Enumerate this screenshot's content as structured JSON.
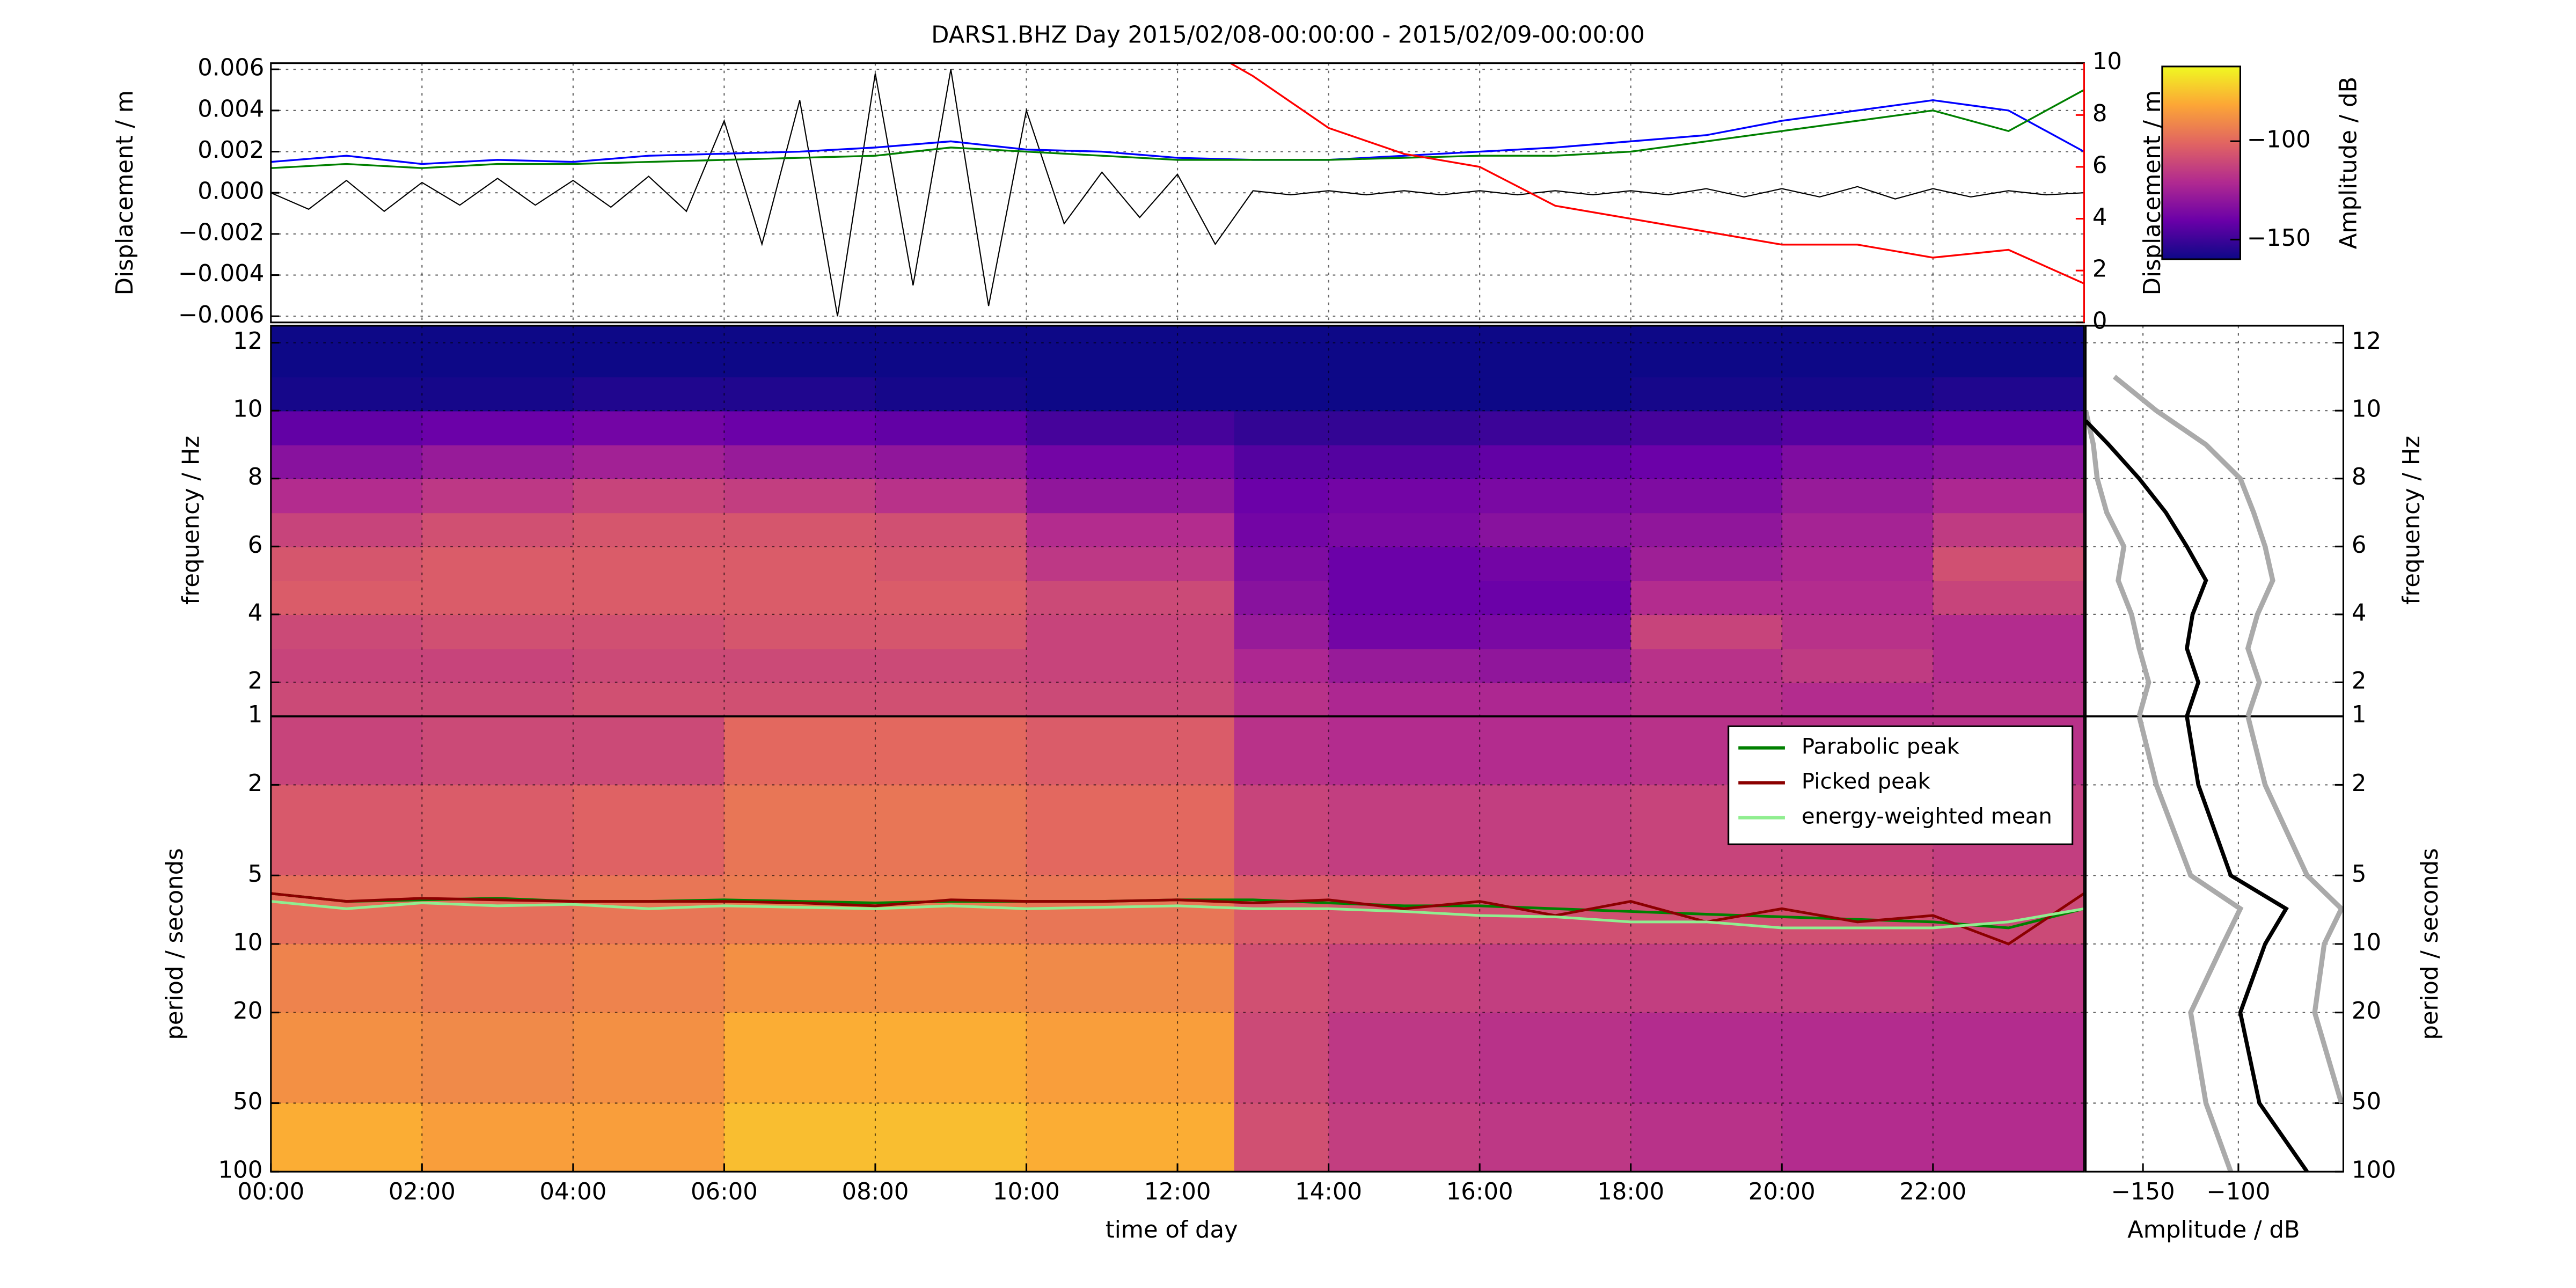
{
  "chart_data": [
    {
      "type": "line",
      "title": "DARS1.BHZ Day 2015/02/08-00:00:00 - 2015/02/09-00:00:00",
      "ylabel": "Displacement / m",
      "y2label": "Displacement / m",
      "y2color": "#ff0000",
      "xlim": [
        0,
        24
      ],
      "ylim": [
        -0.0063,
        0.0063
      ],
      "yticks": [
        {
          "value": -0.006,
          "label": "−0.006"
        },
        {
          "value": -0.004,
          "label": "−0.004"
        },
        {
          "value": -0.002,
          "label": "−0.002"
        },
        {
          "value": 0,
          "label": "0.000"
        },
        0.002,
        0.004,
        0.006
      ],
      "y2lim": [
        0,
        10
      ],
      "y2ticks": [
        0,
        2,
        4,
        6,
        8,
        10
      ],
      "grid": true,
      "series": [
        {
          "color": "#000000",
          "x": [
            0,
            0.5,
            1,
            1.5,
            2,
            2.5,
            3,
            3.5,
            4,
            4.5,
            5,
            5.5,
            6,
            6.5,
            7,
            7.5,
            8,
            8.5,
            9,
            9.5,
            10,
            10.5,
            11,
            11.5,
            12,
            12.5,
            13,
            13.5,
            14,
            14.5,
            15,
            15.5,
            16,
            16.5,
            17,
            17.5,
            18,
            18.5,
            19,
            19.5,
            20,
            20.5,
            21,
            21.5,
            22,
            22.5,
            23,
            23.5,
            24
          ],
          "values": [
            0,
            -0.0008,
            0.0006,
            -0.0009,
            0.0005,
            -0.0006,
            0.0007,
            -0.0006,
            0.0006,
            -0.0007,
            0.0008,
            -0.0009,
            0.0035,
            -0.0025,
            0.0045,
            -0.006,
            0.0058,
            -0.0045,
            0.006,
            -0.0055,
            0.004,
            -0.0015,
            0.001,
            -0.0012,
            0.0009,
            -0.0025,
            0.0001,
            -0.0001,
            0.0001,
            -0.0001,
            0.0001,
            -0.0001,
            0.0001,
            -0.0001,
            0.0001,
            -0.0001,
            0.0001,
            -0.0001,
            0.0002,
            -0.0002,
            0.0002,
            -0.0002,
            0.0003,
            -0.0003,
            0.0002,
            -0.0002,
            0.0001,
            -0.0001,
            0
          ]
        },
        {
          "color": "#0000ff",
          "x": [
            0,
            1,
            2,
            3,
            4,
            5,
            6,
            7,
            8,
            9,
            10,
            11,
            12,
            13,
            14,
            15,
            16,
            17,
            18,
            19,
            20,
            21,
            22,
            23,
            24
          ],
          "values": [
            0.0015,
            0.0018,
            0.0014,
            0.0016,
            0.0015,
            0.0018,
            0.0019,
            0.002,
            0.0022,
            0.0025,
            0.0021,
            0.002,
            0.0017,
            0.0016,
            0.0016,
            0.0018,
            0.002,
            0.0022,
            0.0025,
            0.0028,
            0.0035,
            0.004,
            0.0045,
            0.004,
            0.002
          ]
        },
        {
          "color": "#008000",
          "x": [
            0,
            1,
            2,
            3,
            4,
            5,
            6,
            7,
            8,
            9,
            10,
            11,
            12,
            13,
            14,
            15,
            16,
            17,
            18,
            19,
            20,
            21,
            22,
            23,
            24
          ],
          "values": [
            0.0012,
            0.0014,
            0.0012,
            0.0014,
            0.0014,
            0.0015,
            0.0016,
            0.0017,
            0.0018,
            0.0022,
            0.002,
            0.0018,
            0.0016,
            0.0016,
            0.0016,
            0.0017,
            0.0018,
            0.0018,
            0.002,
            0.0025,
            0.003,
            0.0035,
            0.004,
            0.003,
            0.005
          ]
        },
        {
          "color": "#ff0000",
          "axis": "y2",
          "x": [
            12.7,
            13,
            14,
            15,
            16,
            17,
            18,
            19,
            20,
            21,
            22,
            23,
            24
          ],
          "values": [
            10,
            9.5,
            7.5,
            6.5,
            6,
            4.5,
            4,
            3.5,
            3,
            3,
            2.5,
            2.8,
            1.5
          ]
        }
      ]
    },
    {
      "type": "spectrogram",
      "xlabel": "time of day",
      "xlim": [
        0,
        24
      ],
      "xticks": [
        {
          "value": 0,
          "label": "00:00"
        },
        {
          "value": 2,
          "label": "02:00"
        },
        {
          "value": 4,
          "label": "04:00"
        },
        {
          "value": 6,
          "label": "06:00"
        },
        {
          "value": 8,
          "label": "08:00"
        },
        {
          "value": 10,
          "label": "10:00"
        },
        {
          "value": 12,
          "label": "12:00"
        },
        {
          "value": 14,
          "label": "14:00"
        },
        {
          "value": 16,
          "label": "16:00"
        },
        {
          "value": 18,
          "label": "18:00"
        },
        {
          "value": 20,
          "label": "20:00"
        },
        {
          "value": 22,
          "label": "22:00"
        }
      ],
      "grid": true,
      "colormap": [
        "#0d0887",
        "#6a00a8",
        "#b12a90",
        "#e16462",
        "#fca636",
        "#f0f921"
      ],
      "clim": [
        -160,
        -62
      ],
      "colorbar_label": "Amplitude / dB",
      "colorbar_ticks": [
        {
          "value": -150,
          "label": "−150"
        },
        {
          "value": -100,
          "label": "−100"
        }
      ],
      "columns": [
        0,
        2,
        4,
        6,
        8,
        10,
        12.75,
        14,
        16,
        18,
        20,
        22,
        24
      ],
      "frequency": {
        "ylabel": "frequency / Hz",
        "ylim": [
          1,
          12.5
        ],
        "yticks": [
          2,
          4,
          6,
          8,
          10,
          12
        ],
        "rows": [
          1,
          2,
          3,
          4,
          5,
          6,
          7,
          8,
          9,
          10,
          11,
          12.5
        ],
        "values": [
          [
            -110,
            -110,
            -108,
            -108,
            -108,
            -110,
            -118,
            -122,
            -122,
            -118,
            -120,
            -118
          ],
          [
            -112,
            -112,
            -110,
            -110,
            -110,
            -112,
            -122,
            -128,
            -130,
            -118,
            -115,
            -120
          ],
          [
            -110,
            -108,
            -108,
            -106,
            -106,
            -112,
            -128,
            -138,
            -136,
            -112,
            -118,
            -120
          ],
          [
            -104,
            -104,
            -104,
            -104,
            -104,
            -110,
            -132,
            -140,
            -140,
            -120,
            -120,
            -112
          ],
          [
            -106,
            -104,
            -104,
            -104,
            -106,
            -116,
            -135,
            -140,
            -138,
            -126,
            -122,
            -108
          ],
          [
            -112,
            -108,
            -106,
            -106,
            -108,
            -120,
            -138,
            -136,
            -132,
            -130,
            -124,
            -115
          ],
          [
            -120,
            -116,
            -112,
            -114,
            -118,
            -130,
            -140,
            -138,
            -136,
            -135,
            -128,
            -122
          ],
          [
            -132,
            -128,
            -125,
            -128,
            -130,
            -138,
            -145,
            -145,
            -142,
            -140,
            -135,
            -132
          ],
          [
            -142,
            -140,
            -138,
            -140,
            -142,
            -148,
            -152,
            -152,
            -150,
            -148,
            -145,
            -142
          ],
          [
            -158,
            -158,
            -156,
            -156,
            -158,
            -160,
            -160,
            -160,
            -160,
            -158,
            -158,
            -156
          ],
          [
            -160,
            -160,
            -160,
            -160,
            -160,
            -160,
            -160,
            -160,
            -160,
            -160,
            -160,
            -160
          ]
        ]
      },
      "period": {
        "ylabel": "period / seconds",
        "ylim": [
          1,
          100
        ],
        "log": true,
        "yticks": [
          1,
          2,
          5,
          10,
          20,
          50,
          100
        ],
        "rows": [
          1,
          2,
          5,
          10,
          20,
          50,
          100
        ],
        "values": [
          [
            -112,
            -110,
            -110,
            -100,
            -100,
            -104,
            -118,
            -120,
            -120,
            -118,
            -118,
            -118
          ],
          [
            -105,
            -104,
            -102,
            -96,
            -96,
            -100,
            -112,
            -114,
            -114,
            -112,
            -112,
            -114
          ],
          [
            -98,
            -98,
            -96,
            -94,
            -94,
            -96,
            -104,
            -106,
            -108,
            -108,
            -108,
            -110
          ],
          [
            -92,
            -94,
            -92,
            -88,
            -88,
            -90,
            -108,
            -112,
            -114,
            -114,
            -114,
            -116
          ],
          [
            -88,
            -90,
            -88,
            -80,
            -80,
            -84,
            -110,
            -116,
            -118,
            -120,
            -120,
            -120
          ],
          [
            -80,
            -84,
            -84,
            -76,
            -76,
            -80,
            -108,
            -114,
            -116,
            -118,
            -120,
            -120
          ]
        ]
      },
      "x": [
        0,
        1,
        2,
        3,
        4,
        5,
        6,
        7,
        8,
        9,
        10,
        11,
        12,
        13,
        14,
        15,
        16,
        17,
        18,
        19,
        20,
        21,
        22,
        23,
        24
      ],
      "legend": "upper right",
      "series": [
        {
          "name": "Parabolic peak",
          "color": "#008000",
          "values": [
            6,
            6.5,
            6.4,
            6.3,
            6.5,
            6.5,
            6.4,
            6.5,
            6.6,
            6.5,
            6.5,
            6.5,
            6.4,
            6.4,
            6.6,
            6.8,
            6.8,
            7,
            7.2,
            7.4,
            7.6,
            7.8,
            8,
            8.5,
            7
          ]
        },
        {
          "name": "Picked peak",
          "color": "#8b0000",
          "values": [
            6,
            6.5,
            6.3,
            6.4,
            6.5,
            6.5,
            6.5,
            6.6,
            6.8,
            6.4,
            6.5,
            6.5,
            6.4,
            6.6,
            6.4,
            7,
            6.5,
            7.5,
            6.5,
            8,
            7,
            8,
            7.5,
            10,
            6
          ]
        },
        {
          "name": "energy-weighted mean",
          "color": "#90ee90",
          "values": [
            6.5,
            7,
            6.6,
            6.8,
            6.7,
            7,
            6.8,
            6.9,
            7,
            6.8,
            7,
            6.9,
            6.8,
            7,
            7,
            7.2,
            7.5,
            7.6,
            8,
            8,
            8.5,
            8.5,
            8.5,
            8,
            7
          ]
        }
      ]
    },
    {
      "type": "profile",
      "xlabel": "Amplitude / dB",
      "xlim": [
        -180,
        -45
      ],
      "xticks": [
        {
          "value": -150,
          "label": "−150"
        },
        {
          "value": -100,
          "label": "−100"
        }
      ],
      "grid": true,
      "frequency_series": [
        {
          "color": "#aaaaaa",
          "frequency": [
            1,
            2,
            3,
            4,
            5,
            6,
            7,
            8,
            9,
            10,
            11
          ],
          "values": [
            -95,
            -89,
            -95,
            -90,
            -82,
            -86,
            -92,
            -99,
            -117,
            -143,
            -165
          ]
        },
        {
          "color": "#aaaaaa",
          "frequency": [
            1,
            2,
            3,
            4,
            5,
            6,
            7,
            8,
            9,
            10
          ],
          "values": [
            -152,
            -147,
            -152,
            -156,
            -163,
            -160,
            -169,
            -174,
            -176,
            -180
          ]
        },
        {
          "color": "#000000",
          "frequency": [
            1,
            2,
            3,
            4,
            5,
            6,
            7,
            8,
            9,
            9.7
          ],
          "values": [
            -127,
            -121,
            -127,
            -124,
            -117,
            -127,
            -138,
            -152,
            -168,
            -180
          ]
        }
      ],
      "period_series": [
        {
          "color": "#aaaaaa",
          "period": [
            1,
            2,
            5,
            7,
            10,
            20,
            50
          ],
          "values": [
            -95,
            -86,
            -64,
            -46,
            -55,
            -60,
            -46
          ]
        },
        {
          "color": "#aaaaaa",
          "period": [
            1,
            2,
            5,
            7,
            10,
            20,
            50,
            100
          ],
          "values": [
            -152,
            -143,
            -125,
            -99,
            -108,
            -125,
            -117,
            -104
          ]
        },
        {
          "color": "#000000",
          "period": [
            1,
            2,
            5,
            7,
            10,
            20,
            50,
            100
          ],
          "values": [
            -127,
            -121,
            -104,
            -75,
            -86,
            -99,
            -89,
            -64
          ]
        }
      ]
    }
  ]
}
